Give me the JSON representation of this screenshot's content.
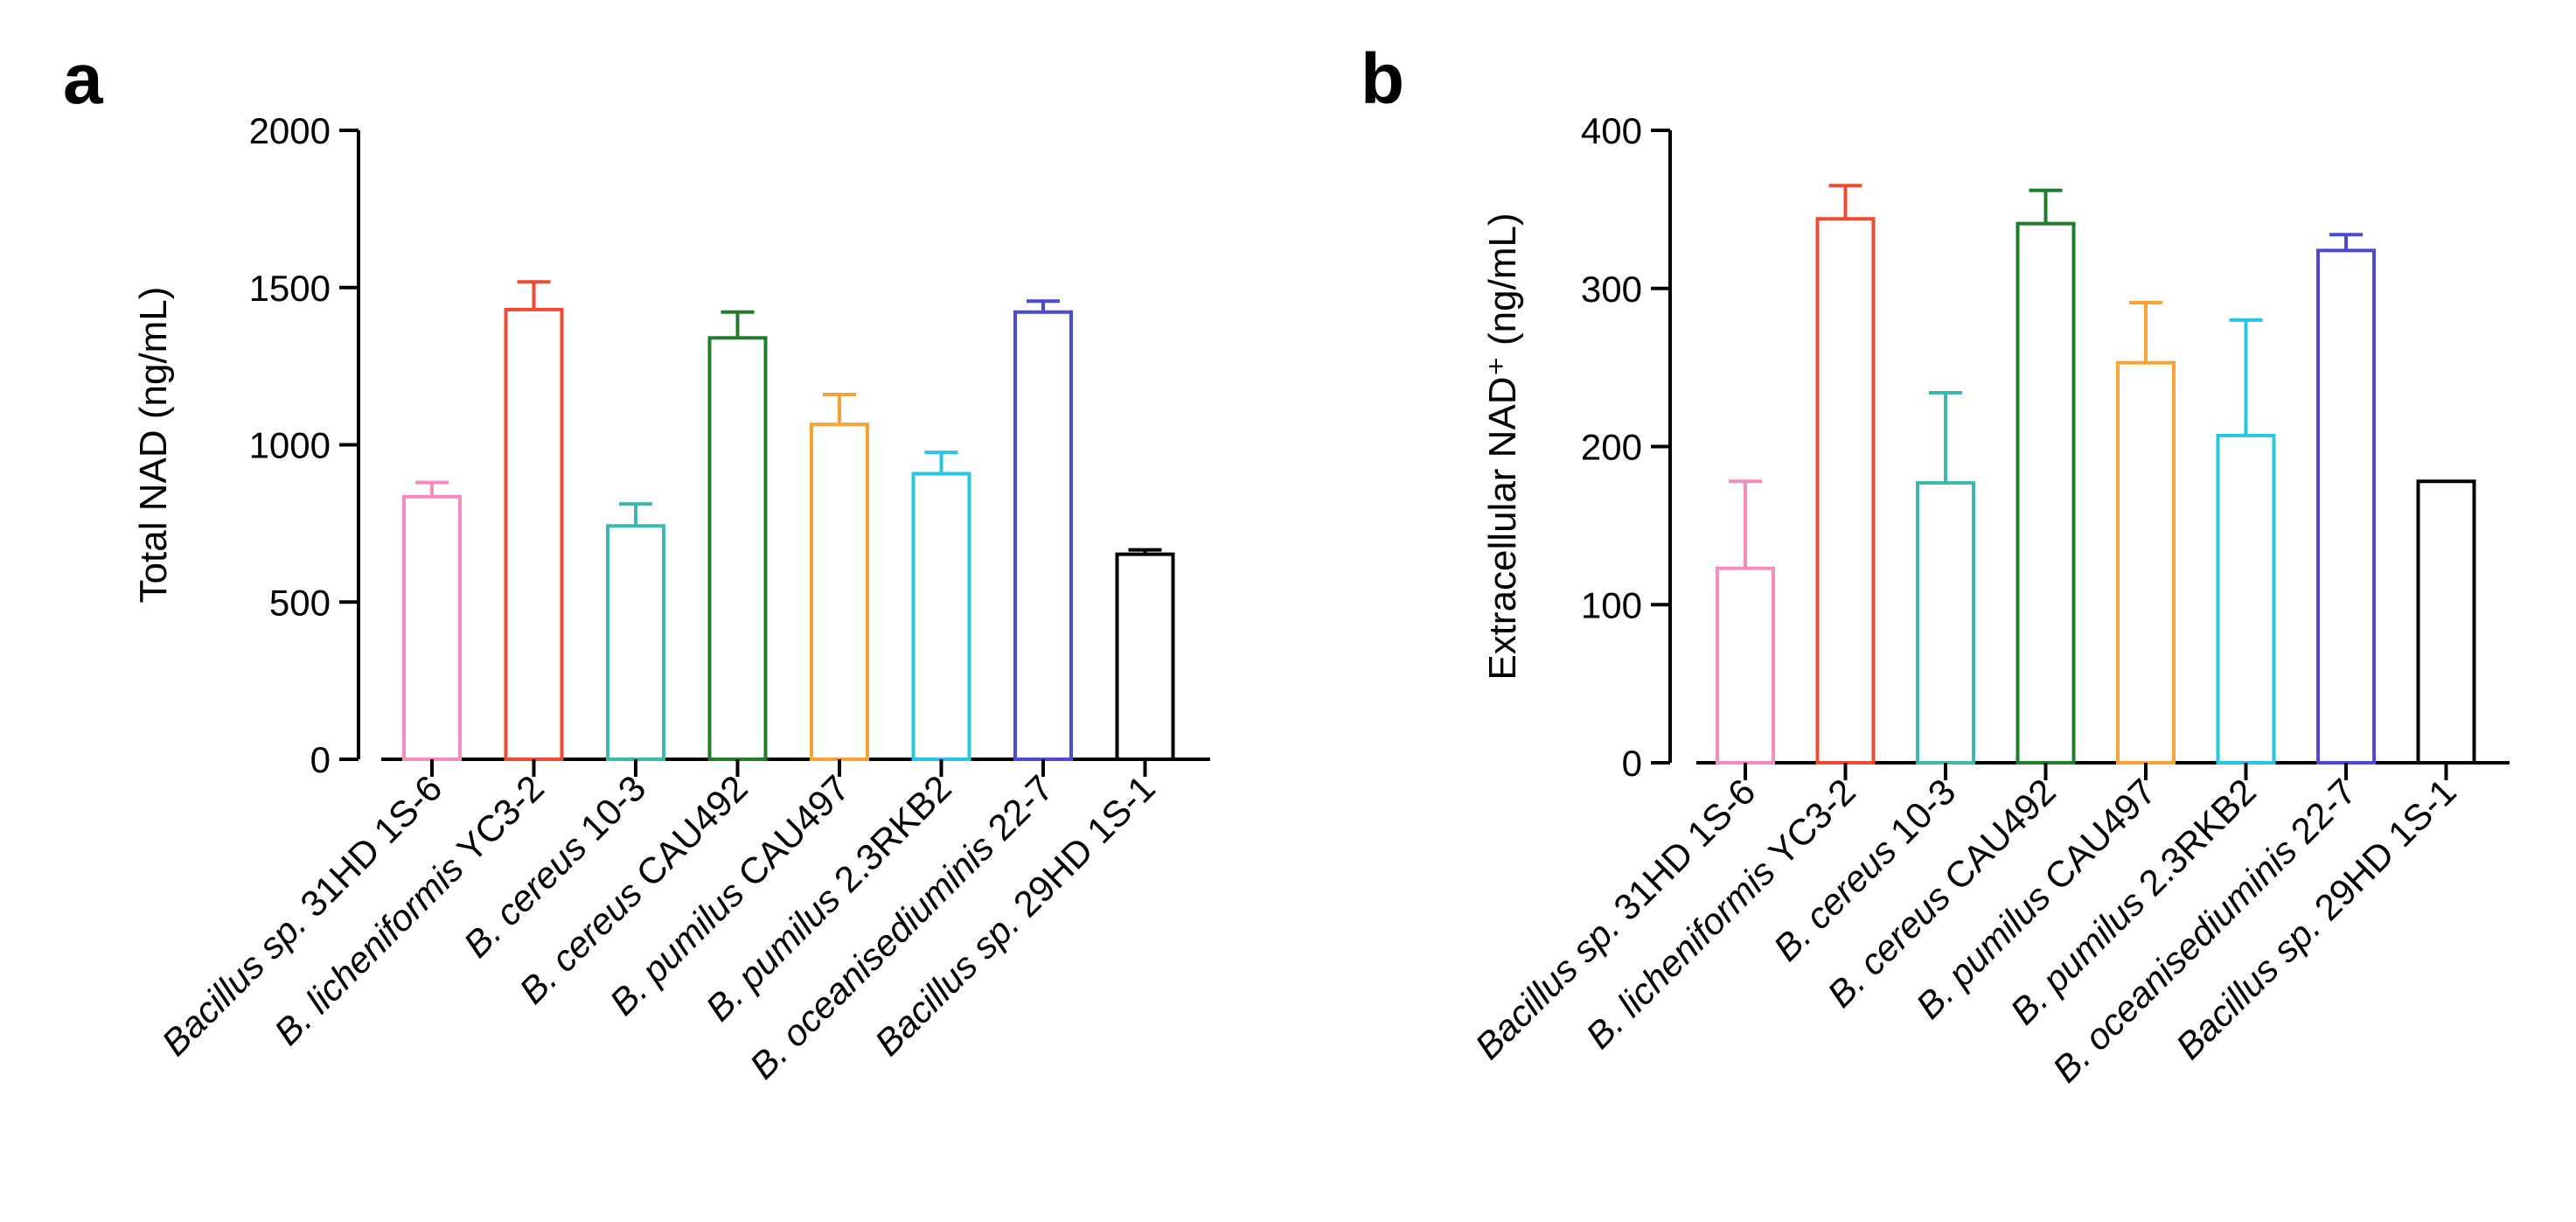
{
  "chart_data": [
    {
      "panel": "a",
      "type": "bar",
      "ylabel": "Total NAD (ng/mL)",
      "ylim": [
        0,
        2000
      ],
      "yticks": [
        0,
        500,
        1000,
        1500,
        2000
      ],
      "categories": [
        {
          "italic": "Bacillus sp.",
          "plain": " 31HD 1S-6"
        },
        {
          "italic": "B. licheniformis",
          "plain": " YC3-2"
        },
        {
          "italic": "B. cereus",
          "plain": " 10-3"
        },
        {
          "italic": "B. cereus",
          "plain": " CAU492"
        },
        {
          "italic": "B. pumilus",
          "plain": " CAU497"
        },
        {
          "italic": "B. pumilus",
          "plain": " 2.3RKB2"
        },
        {
          "italic": "B. oceanisediuminis",
          "plain": " 22-7"
        },
        {
          "italic": "Bacillus sp.",
          "plain": " 29HD 1S-1"
        }
      ],
      "values": [
        835,
        1430,
        742,
        1340,
        1065,
        908,
        1422,
        652
      ],
      "errors": [
        45,
        88,
        70,
        82,
        95,
        68,
        35,
        14
      ],
      "colors": [
        "#f48cc0",
        "#f24a30",
        "#3db8ac",
        "#1e7d2a",
        "#f7a233",
        "#27c6e8",
        "#4a4ad8",
        "#000000"
      ],
      "grid": false,
      "legend": "none"
    },
    {
      "panel": "b",
      "type": "bar",
      "ylabel": "Extracellular NAD⁺ (ng/mL)",
      "ylim": [
        0,
        400
      ],
      "yticks": [
        0,
        100,
        200,
        300,
        400
      ],
      "categories": [
        {
          "italic": "Bacillus sp.",
          "plain": " 31HD 1S-6"
        },
        {
          "italic": "B. licheniformis",
          "plain": " YC3-2"
        },
        {
          "italic": "B. cereus",
          "plain": " 10-3"
        },
        {
          "italic": "B. cereus",
          "plain": " CAU492"
        },
        {
          "italic": "B. pumilus",
          "plain": " CAU497"
        },
        {
          "italic": "B. pumilus",
          "plain": " 2.3RKB2"
        },
        {
          "italic": "B. oceanisediuminis",
          "plain": " 22-7"
        },
        {
          "italic": "Bacillus sp.",
          "plain": " 29HD 1S-1"
        }
      ],
      "values": [
        123,
        344,
        177,
        341,
        253,
        207,
        324,
        178
      ],
      "errors": [
        55,
        21,
        57,
        21,
        38,
        73,
        10,
        0
      ],
      "colors": [
        "#f48cc0",
        "#f24a30",
        "#3db8ac",
        "#1e7d2a",
        "#f7a233",
        "#27c6e8",
        "#4a4ad8",
        "#000000"
      ],
      "grid": false,
      "legend": "none"
    }
  ]
}
